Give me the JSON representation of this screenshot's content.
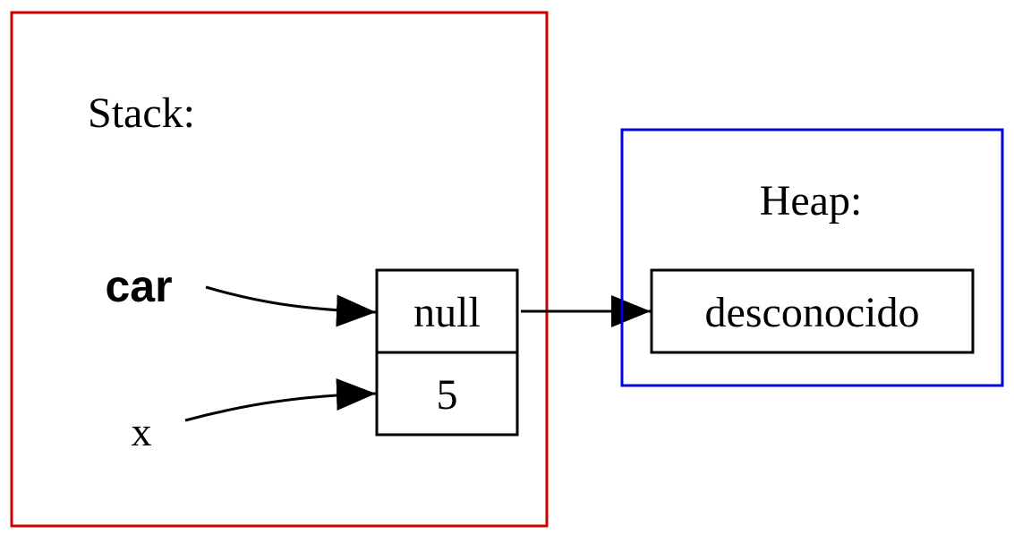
{
  "stack": {
    "title": "Stack:",
    "border_color": "#cc0000",
    "variables": [
      {
        "name": "car"
      },
      {
        "name": "x"
      }
    ],
    "cells": [
      {
        "value": "null"
      },
      {
        "value": "5"
      }
    ]
  },
  "heap": {
    "title": "Heap:",
    "border_color": "#0000dd",
    "objects": [
      {
        "value": "desconocido"
      }
    ]
  }
}
